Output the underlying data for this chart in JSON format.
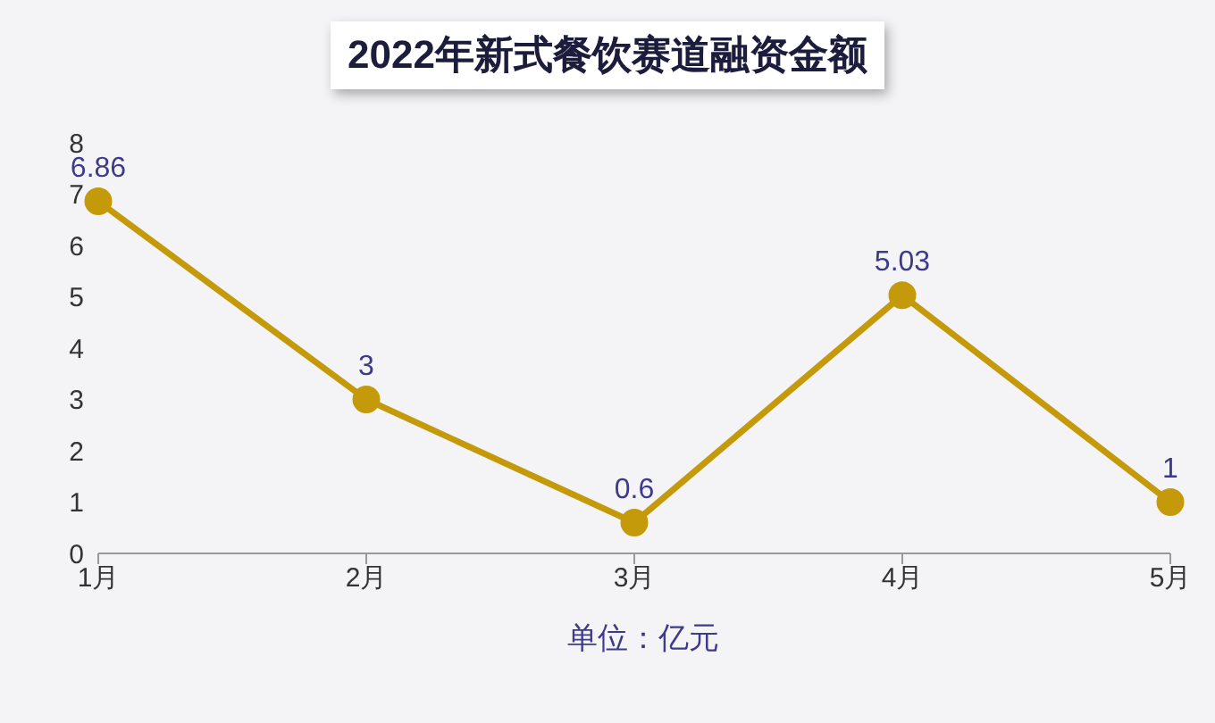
{
  "chart_data": {
    "type": "line",
    "title": "2022年新式餐饮赛道融资金额",
    "xlabel": "单位：亿元",
    "categories": [
      "1月",
      "2月",
      "3月",
      "4月",
      "5月"
    ],
    "series": [
      {
        "color": "#c49a0a",
        "values": [
          6.86,
          3,
          0.6,
          5.03,
          1
        ]
      }
    ],
    "ylim": [
      0,
      8
    ],
    "yticks": [
      0,
      1,
      2,
      3,
      4,
      5,
      6,
      7,
      8
    ],
    "data_labels": true,
    "marker": "circle",
    "line_style": "solid"
  }
}
